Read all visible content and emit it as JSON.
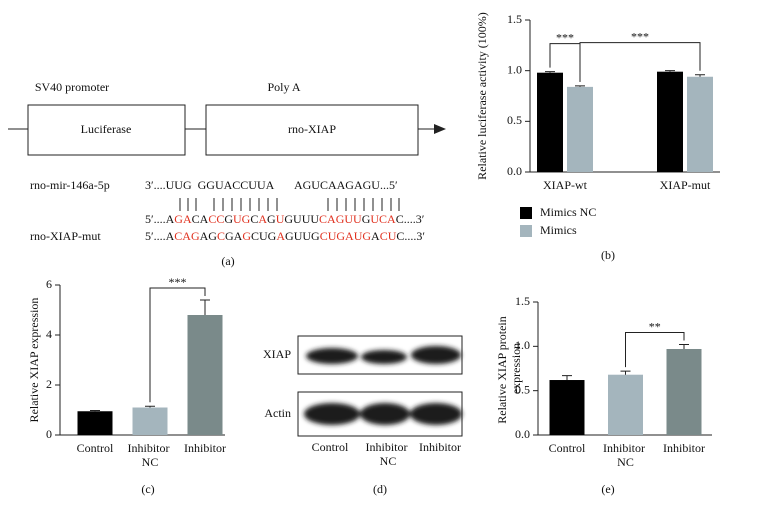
{
  "diagram": {
    "promoter_label": "SV40 promoter",
    "polya_label": "Poly A",
    "boxes": [
      "Luciferase",
      "rno-XIAP"
    ],
    "mirna": {
      "label": "rno-mir-146a-5p",
      "sequence": "3′....UUG  GGUACCUUA       AGUCAAGAGU...5′"
    },
    "wt": {
      "segments": [
        {
          "text": "5′....A",
          "highlight": false
        },
        {
          "text": "GA",
          "highlight": true
        },
        {
          "text": "CA",
          "highlight": false
        },
        {
          "text": "CC",
          "highlight": true
        },
        {
          "text": "G",
          "highlight": false
        },
        {
          "text": "UG",
          "highlight": true
        },
        {
          "text": "C",
          "highlight": false
        },
        {
          "text": "A",
          "highlight": true
        },
        {
          "text": "G",
          "highlight": false
        },
        {
          "text": "U",
          "highlight": true
        },
        {
          "text": "GUUU",
          "highlight": false
        },
        {
          "text": "CAGUU",
          "highlight": true
        },
        {
          "text": "G",
          "highlight": false
        },
        {
          "text": "UCA",
          "highlight": true
        },
        {
          "text": "C....3′",
          "highlight": false
        }
      ]
    },
    "mut": {
      "label": "rno-XIAP-mut",
      "segments": [
        {
          "text": "5′....A",
          "highlight": false
        },
        {
          "text": "CAG",
          "highlight": true
        },
        {
          "text": "AG",
          "highlight": false
        },
        {
          "text": "C",
          "highlight": true
        },
        {
          "text": "GA",
          "highlight": false
        },
        {
          "text": "G",
          "highlight": true
        },
        {
          "text": "CUG",
          "highlight": false
        },
        {
          "text": "A",
          "highlight": true
        },
        {
          "text": "GUUG",
          "highlight": false
        },
        {
          "text": "CUGAUG",
          "highlight": true
        },
        {
          "text": "A",
          "highlight": false
        },
        {
          "text": "CU",
          "highlight": true
        },
        {
          "text": "C....3′",
          "highlight": false
        }
      ]
    },
    "highlight_color": "#e0301e",
    "caption": "(a)"
  },
  "blot": {
    "rows": [
      "XIAP",
      "Actin"
    ],
    "lanes": [
      "Control",
      "Inhibitor NC",
      "Inhibitor"
    ],
    "caption": "(d)"
  },
  "chart_data": [
    {
      "type": "grouped_bar",
      "categories": [
        "XIAP-wt",
        "XIAP-mut"
      ],
      "series": [
        {
          "name": "Mimics NC",
          "color": "#000000",
          "values": [
            0.98,
            0.99
          ],
          "errors": [
            0.01,
            0.01
          ]
        },
        {
          "name": "Mimics",
          "color": "#a4b5bd",
          "values": [
            0.84,
            0.94
          ],
          "errors": [
            0.01,
            0.02
          ]
        }
      ],
      "ylabel": "Relative luciferase activity (100%)",
      "ylim": [
        0,
        1.5
      ],
      "yticks": [
        {
          "value": 0,
          "label": "0.0"
        },
        {
          "value": 0.5,
          "label": "0.5"
        },
        {
          "value": 1,
          "label": "1.0"
        },
        {
          "value": 1.5,
          "label": "1.5"
        }
      ],
      "annotations": [
        {
          "text": "***",
          "from": [
            0,
            0
          ],
          "to": [
            1,
            0
          ]
        },
        {
          "text": "***",
          "from": [
            1,
            0
          ],
          "to": [
            1,
            1
          ]
        }
      ],
      "caption": "(b)"
    },
    {
      "type": "bar",
      "categories": [
        "Control",
        "Inhibitor NC",
        "Inhibitor"
      ],
      "values": [
        0.95,
        1.1,
        4.8
      ],
      "errors": [
        0.03,
        0.05,
        0.6
      ],
      "colors": [
        "#000000",
        "#a4b5bd",
        "#7a8a8a"
      ],
      "ylabel": "Relative XIAP expression",
      "ylim": [
        0,
        6
      ],
      "yticks": [
        0,
        2,
        4,
        6
      ],
      "annotations": [
        {
          "text": "***",
          "from": 1,
          "to": 2
        }
      ],
      "caption": "(c)"
    },
    {
      "type": "bar",
      "categories": [
        "Control",
        "Inhibitor NC",
        "Inhibitor"
      ],
      "values": [
        0.62,
        0.68,
        0.97
      ],
      "errors": [
        0.05,
        0.04,
        0.05
      ],
      "colors": [
        "#000000",
        "#a4b5bd",
        "#7a8a8a"
      ],
      "ylabel": "Relative XIAP protein expression",
      "ylim": [
        0,
        1.5
      ],
      "yticks": [
        {
          "value": 0,
          "label": "0.0"
        },
        {
          "value": 0.5,
          "label": "0.5"
        },
        {
          "value": 1,
          "label": "1.0"
        },
        {
          "value": 1.5,
          "label": "1.5"
        }
      ],
      "annotations": [
        {
          "text": "**",
          "from": 1,
          "to": 2
        }
      ],
      "caption": "(e)"
    }
  ]
}
